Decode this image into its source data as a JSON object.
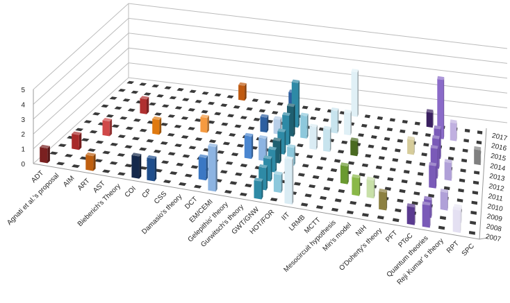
{
  "chart_data": {
    "type": "bar3d",
    "title": "",
    "xlabel": "",
    "ylabel": "",
    "zlim": [
      0,
      5
    ],
    "z_ticks": [
      "0",
      "1",
      "2",
      "3",
      "4",
      "5"
    ],
    "categories": [
      "ADT",
      "Agnati et al.'s proposal",
      "AIM",
      "ART",
      "AST",
      "Bieberich's Theory",
      "COI",
      "CP",
      "CSS",
      "Damasio's theory",
      "DCT",
      "EM/CEMI",
      "Gelepithis' theory",
      "Gurwitsch's theory",
      "GWT/GNW",
      "HOT/FOR",
      "IIT",
      "LRMB",
      "MCTT",
      "Mesocircuit hypothesis",
      "Min's model",
      "NIH",
      "O'Doherty's theory",
      "PFT",
      "PToC",
      "Quantum theories",
      "Reji Kumar' s theory",
      "RPT",
      "SPC"
    ],
    "years": [
      "2007",
      "2008",
      "2009",
      "2010",
      "2011",
      "2012",
      "2013",
      "2014",
      "2015",
      "2016",
      "2017"
    ],
    "grid": true,
    "bars": [
      {
        "category": "ADT",
        "year": "2007",
        "value": 1,
        "color": "#7a2020"
      },
      {
        "category": "Agnati et al.'s proposal",
        "year": "2009",
        "value": 1,
        "color": "#a82a2a"
      },
      {
        "category": "AIM",
        "year": "2011",
        "value": 1,
        "color": "#d04848"
      },
      {
        "category": "ART",
        "year": "2007",
        "value": 1,
        "color": "#c06010"
      },
      {
        "category": "ART",
        "year": "2014",
        "value": 1,
        "color": "#b03030"
      },
      {
        "category": "Bieberich's Theory",
        "year": "2012",
        "value": 1,
        "color": "#e07a10"
      },
      {
        "category": "CSS",
        "year": "2013",
        "value": 1,
        "color": "#f59a40"
      },
      {
        "category": "Damasio's theory",
        "year": "2017",
        "value": 1,
        "color": "#c05a10"
      },
      {
        "category": "COI",
        "year": "2007",
        "value": 1.5,
        "color": "#14284b"
      },
      {
        "category": "CP",
        "year": "2007",
        "value": 1.5,
        "color": "#1f4e8c"
      },
      {
        "category": "DCT",
        "year": "2008",
        "value": 1.5,
        "color": "#3b78c4"
      },
      {
        "category": "EM/CEMI",
        "year": "2007",
        "value": 3,
        "color": "#8db4e2"
      },
      {
        "category": "Gelepithis' theory",
        "year": "2011",
        "value": 1.5,
        "color": "#4a86d0"
      },
      {
        "category": "Gelepithis' theory",
        "year": "2014",
        "value": 1,
        "color": "#2d5fa0"
      },
      {
        "category": "Gurwitsch's theory",
        "year": "2011",
        "value": 1.5,
        "color": "#8db4e2"
      },
      {
        "category": "Gurwitsch's theory",
        "year": "2017",
        "value": 1,
        "color": "#2d5fa0"
      },
      {
        "category": "Gurwitsch's theory",
        "year": "2014",
        "value": 1,
        "color": "#b8cfe8"
      },
      {
        "category": "GWT/GNW",
        "year": "2007",
        "value": 1.2,
        "color": "#2e8aa6"
      },
      {
        "category": "GWT/GNW",
        "year": "2008",
        "value": 1.5,
        "color": "#2e8aa6"
      },
      {
        "category": "GWT/GNW",
        "year": "2009",
        "value": 1.5,
        "color": "#2e8aa6"
      },
      {
        "category": "GWT/GNW",
        "year": "2010",
        "value": 1.5,
        "color": "#2e8aa6"
      },
      {
        "category": "GWT/GNW",
        "year": "2011",
        "value": 1.5,
        "color": "#1f5f70"
      },
      {
        "category": "GWT/GNW",
        "year": "2012",
        "value": 1.5,
        "color": "#2e8aa6"
      },
      {
        "category": "GWT/GNW",
        "year": "2013",
        "value": 2,
        "color": "#2e8aa6"
      },
      {
        "category": "GWT/GNW",
        "year": "2014",
        "value": 2,
        "color": "#1f5f70"
      },
      {
        "category": "GWT/GNW",
        "year": "2015",
        "value": 3,
        "color": "#2e8aa6"
      },
      {
        "category": "HOT/FOR",
        "year": "2008",
        "value": 1.2,
        "color": "#8dc8dc"
      },
      {
        "category": "HOT/FOR",
        "year": "2011",
        "value": 1.2,
        "color": "#8dc8dc"
      },
      {
        "category": "HOT/FOR",
        "year": "2014",
        "value": 1.5,
        "color": "#8dc8dc"
      },
      {
        "category": "IIT",
        "year": "2007",
        "value": 3,
        "color": "#daecf4"
      },
      {
        "category": "IIT",
        "year": "2013",
        "value": 1.5,
        "color": "#daecf4"
      },
      {
        "category": "LRMB",
        "year": "2013",
        "value": 1.5,
        "color": "#c8e4ee"
      },
      {
        "category": "LRMB",
        "year": "2015",
        "value": 1.5,
        "color": "#c8e4ee"
      },
      {
        "category": "MCTT",
        "year": "2015",
        "value": 1.5,
        "color": "#e0f0f6"
      },
      {
        "category": "MCTT",
        "year": "2017",
        "value": 3,
        "color": "#e0f0f6"
      },
      {
        "category": "Mesocircuit hypothesis",
        "year": "2010",
        "value": 1.2,
        "color": "#6a9a30"
      },
      {
        "category": "Mesocircuit hypothesis",
        "year": "2013",
        "value": 1,
        "color": "#4a6a20"
      },
      {
        "category": "Min's model",
        "year": "2009",
        "value": 1.2,
        "color": "#8ab848"
      },
      {
        "category": "NIH",
        "year": "2009",
        "value": 1.2,
        "color": "#c8e0a8"
      },
      {
        "category": "O'Doherty's theory",
        "year": "2008",
        "value": 1.2,
        "color": "#8c8040"
      },
      {
        "category": "PFT",
        "year": "2014",
        "value": 1,
        "color": "#d6cc9a"
      },
      {
        "category": "PToC",
        "year": "2007",
        "value": 1.2,
        "color": "#5a3a90"
      },
      {
        "category": "PToC",
        "year": "2017",
        "value": 1,
        "color": "#3a2060"
      },
      {
        "category": "Quantum theories",
        "year": "2007",
        "value": 1.5,
        "color": "#7a5ab8"
      },
      {
        "category": "Quantum theories",
        "year": "2008",
        "value": 1.2,
        "color": "#7a5ab8"
      },
      {
        "category": "Quantum theories",
        "year": "2011",
        "value": 1.5,
        "color": "#7a5ab8"
      },
      {
        "category": "Quantum theories",
        "year": "2012",
        "value": 2,
        "color": "#7a5ab8"
      },
      {
        "category": "Quantum theories",
        "year": "2013",
        "value": 2,
        "color": "#7a5ab8"
      },
      {
        "category": "Quantum theories",
        "year": "2014",
        "value": 2,
        "color": "#7a5ab8"
      },
      {
        "category": "Quantum theories",
        "year": "2016",
        "value": 4,
        "color": "#8a6ac8"
      },
      {
        "category": "Reji Kumar' s theory",
        "year": "2009",
        "value": 1.2,
        "color": "#b0a0d8"
      },
      {
        "category": "Reji Kumar' s theory",
        "year": "2012",
        "value": 1.2,
        "color": "#b0a0d8"
      },
      {
        "category": "Reji Kumar' s theory",
        "year": "2016",
        "value": 1.2,
        "color": "#c0b0e0"
      },
      {
        "category": "RPT",
        "year": "2007",
        "value": 1.5,
        "color": "#e4e0f2"
      },
      {
        "category": "RPT",
        "year": "2008",
        "value": 1,
        "color": "#e8e6f4"
      },
      {
        "category": "SPC",
        "year": "2014",
        "value": 1,
        "color": "#808080"
      }
    ]
  }
}
